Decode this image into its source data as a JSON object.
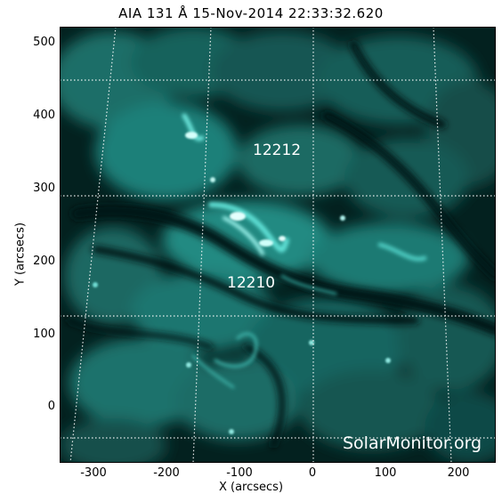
{
  "title": "AIA 131 Å 15-Nov-2014 22:33:32.620",
  "axes": {
    "xlabel": "X (arcsecs)",
    "ylabel": "Y (arcsecs)",
    "xticks": [
      "-300",
      "-200",
      "-100",
      "0",
      "100",
      "200"
    ],
    "yticks": [
      "500",
      "400",
      "300",
      "200",
      "100",
      "0"
    ]
  },
  "regions": [
    {
      "label": "12212"
    },
    {
      "label": "12210"
    }
  ],
  "watermark": "SolarMonitor.org",
  "colors": {
    "background": "#011a18",
    "emission": "#2ab0a6",
    "bright": "#d6fffb",
    "grid": "#ffffff"
  }
}
